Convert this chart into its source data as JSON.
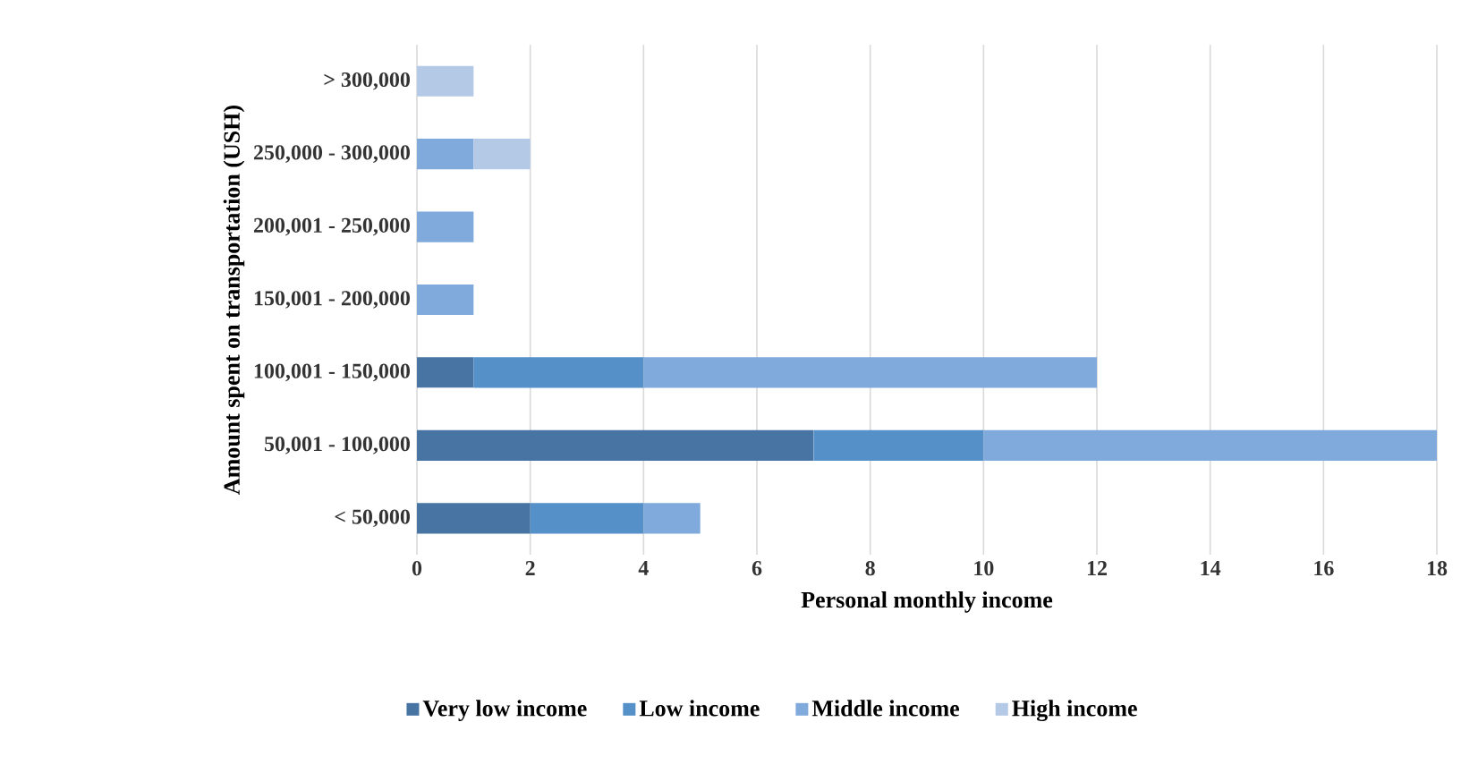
{
  "chart_data": {
    "type": "bar",
    "orientation": "horizontal",
    "stacked": true,
    "xlabel": "Personal monthly income",
    "ylabel": "Amount spent on transportation (USH)",
    "categories": [
      "> 300,000",
      "250,000 - 300,000",
      "200,001 - 250,000",
      "150,001 - 200,000",
      "100,001 - 150,000",
      "50,001 - 100,000",
      "< 50,000"
    ],
    "series": [
      {
        "name": "Very low income",
        "color": "#4774a2",
        "values": [
          null,
          null,
          null,
          null,
          1,
          7,
          2
        ]
      },
      {
        "name": "Low income",
        "color": "#5590c8",
        "values": [
          null,
          null,
          null,
          null,
          3,
          3,
          2
        ]
      },
      {
        "name": "Middle income",
        "color": "#80aadb",
        "values": [
          null,
          1,
          1,
          1,
          8,
          8,
          1
        ]
      },
      {
        "name": "High income",
        "color": "#b4c9e5",
        "values": [
          1,
          1,
          null,
          null,
          null,
          null,
          null
        ]
      }
    ],
    "xlim": [
      0,
      18
    ],
    "xticks": [
      0,
      2,
      4,
      6,
      8,
      10,
      12,
      14,
      16,
      18
    ],
    "grid": "x",
    "legend": "bottom"
  }
}
